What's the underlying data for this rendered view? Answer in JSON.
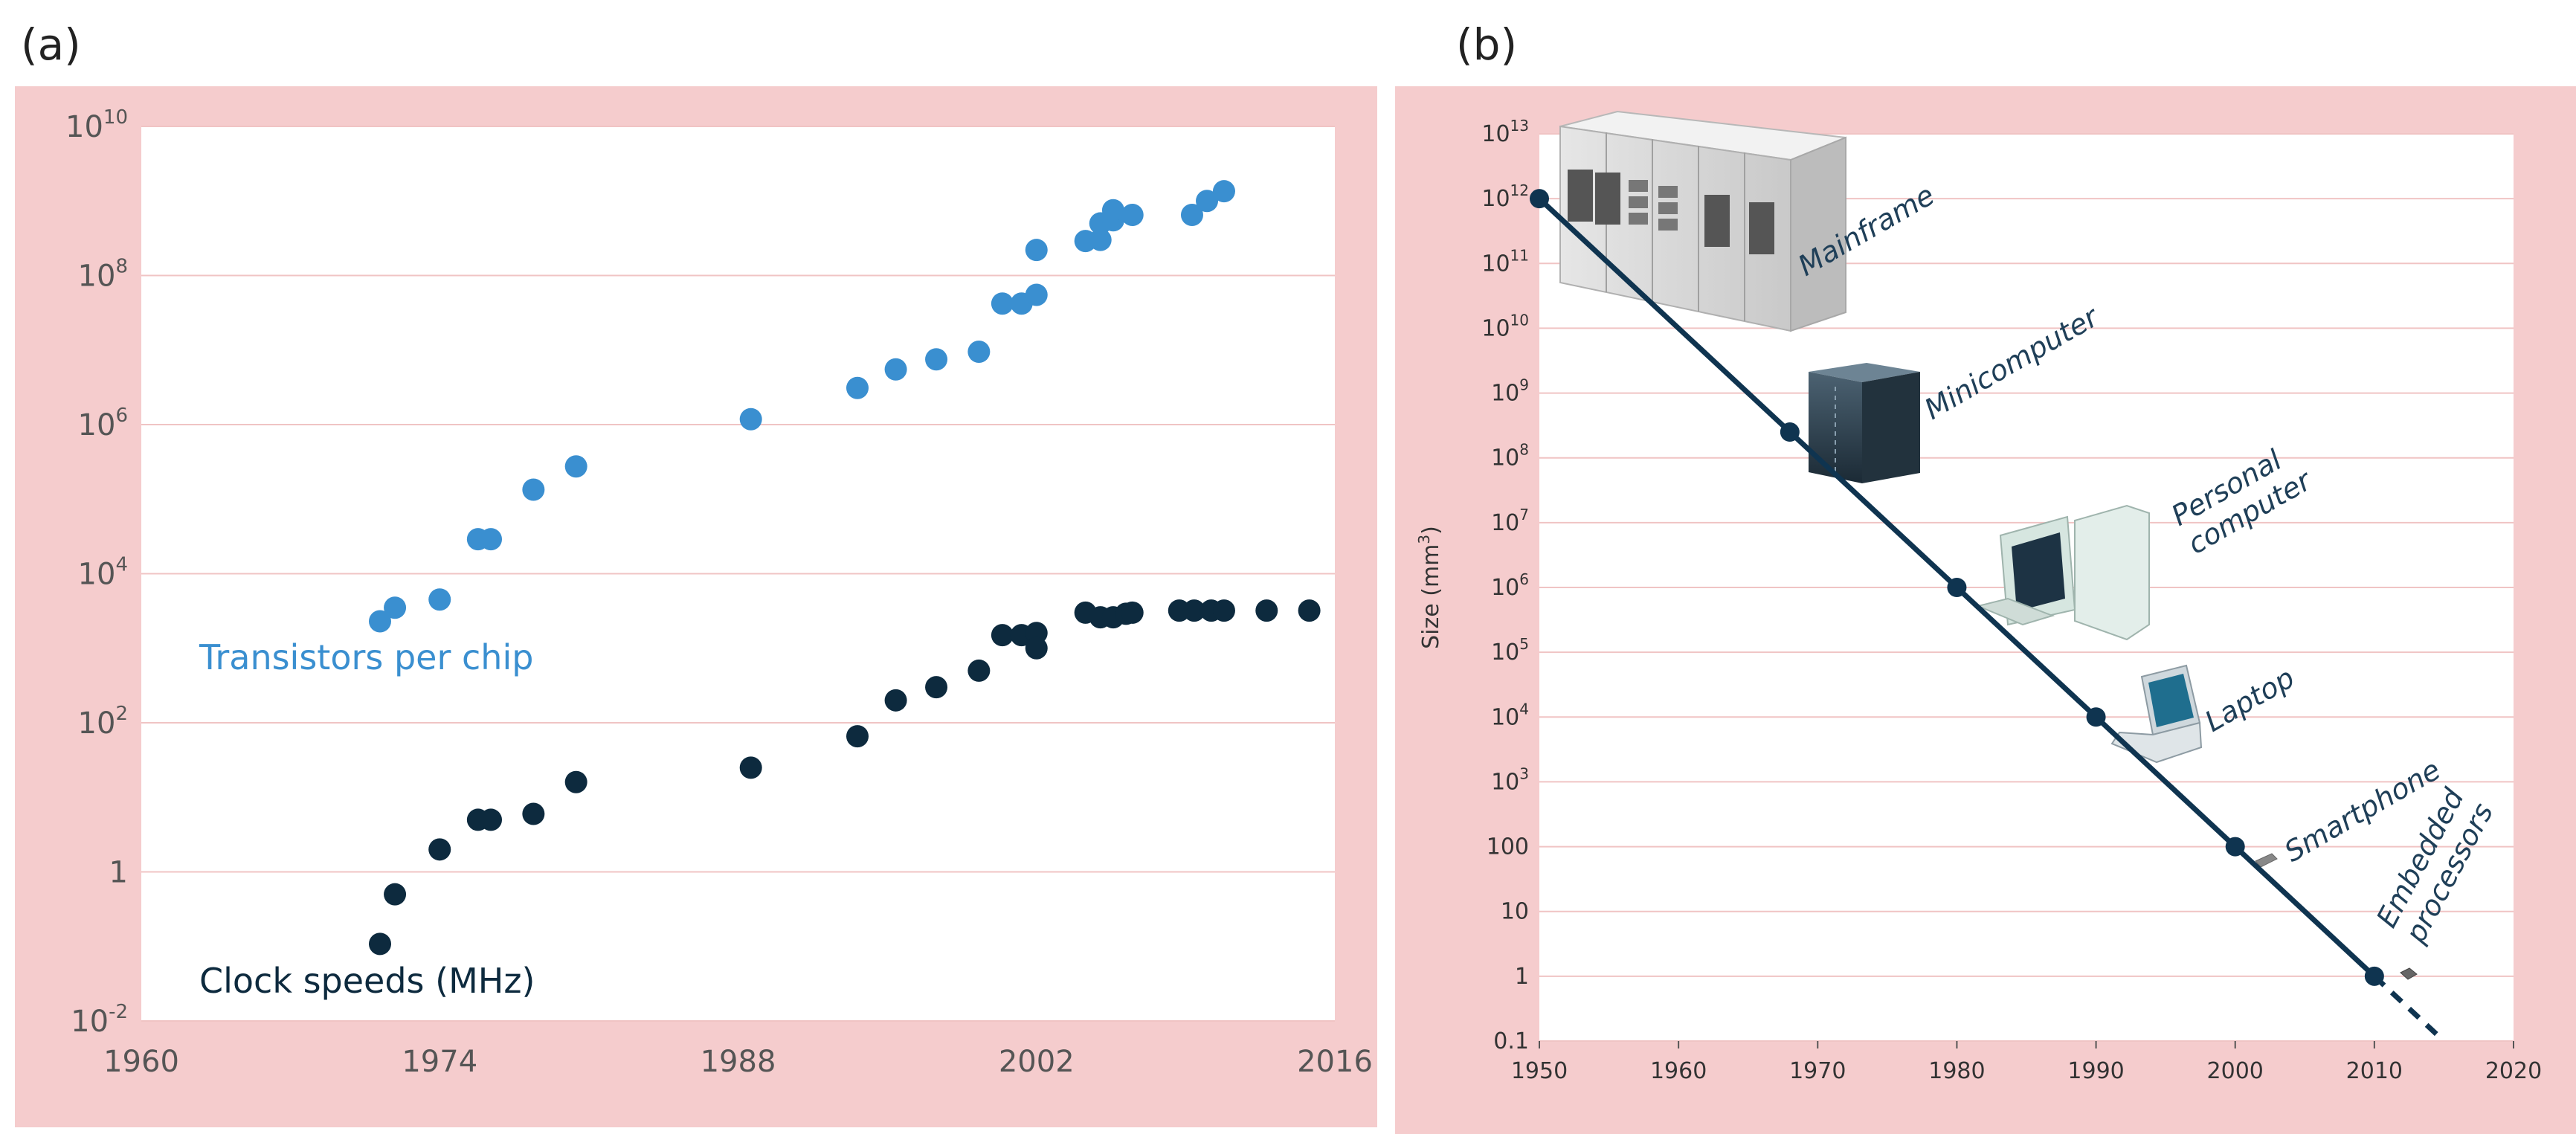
{
  "panel_a_label": "(a)",
  "panel_b_label": "(b)",
  "colors": {
    "background": "#f5cccd",
    "plot_bg": "#ffffff",
    "grid": "#f0c4c4",
    "transistors": "#3a8fd0",
    "clock": "#0d2a3e",
    "line_b": "#0f3450",
    "label_b": "#1f3f58"
  },
  "chart_data": [
    {
      "type": "scatter",
      "yscale": "log",
      "xlim": [
        1960,
        2016
      ],
      "ylim": [
        0.01,
        10000000000
      ],
      "x_ticks": [
        "1960",
        "1974",
        "1988",
        "2002",
        "2016"
      ],
      "y_ticks": [
        {
          "value": 10000000000,
          "base": "10",
          "exp": "10"
        },
        {
          "value": 100000000,
          "base": "10",
          "exp": "8"
        },
        {
          "value": 1000000,
          "base": "10",
          "exp": "6"
        },
        {
          "value": 10000,
          "base": "10",
          "exp": "4"
        },
        {
          "value": 100,
          "base": "10",
          "exp": "2"
        },
        {
          "value": 1,
          "base": "1",
          "exp": ""
        },
        {
          "value": 0.01,
          "base": "10",
          "exp": "-2"
        }
      ],
      "grid": true,
      "series": [
        {
          "name": "Transistors per chip",
          "points": [
            [
              1971.2,
              2300
            ],
            [
              1971.9,
              3500
            ],
            [
              1974.0,
              4500
            ],
            [
              1975.8,
              29000
            ],
            [
              1976.4,
              29000
            ],
            [
              1978.4,
              134000
            ],
            [
              1980.4,
              275000
            ],
            [
              1988.6,
              1180000
            ],
            [
              1993.6,
              3100000
            ],
            [
              1995.4,
              5500000
            ],
            [
              1997.3,
              7500000
            ],
            [
              1999.3,
              9500000
            ],
            [
              2000.4,
              42000000
            ],
            [
              2001.3,
              42000000
            ],
            [
              2002.0,
              55000000
            ],
            [
              2002.0,
              220000000
            ],
            [
              2004.3,
              290000000
            ],
            [
              2005.0,
              300000000
            ],
            [
              2005.0,
              500000000
            ],
            [
              2005.6,
              550000000
            ],
            [
              2005.6,
              750000000
            ],
            [
              2006.5,
              650000000
            ],
            [
              2009.3,
              650000000
            ],
            [
              2010.0,
              1000000000
            ],
            [
              2010.8,
              1350000000
            ]
          ]
        },
        {
          "name": "Clock speeds (MHz)",
          "points": [
            [
              1971.2,
              0.108
            ],
            [
              1971.9,
              0.5
            ],
            [
              1974.0,
              2.0
            ],
            [
              1975.8,
              5.0
            ],
            [
              1976.4,
              5.0
            ],
            [
              1978.4,
              6.0
            ],
            [
              1980.4,
              16.0
            ],
            [
              1988.6,
              25.0
            ],
            [
              1993.6,
              66.0
            ],
            [
              1995.4,
              200.0
            ],
            [
              1997.3,
              300.0
            ],
            [
              1999.3,
              500.0
            ],
            [
              2000.4,
              1500.0
            ],
            [
              2001.3,
              1500.0
            ],
            [
              2002.0,
              1600.0
            ],
            [
              2002.0,
              1000.0
            ],
            [
              2004.3,
              3000.0
            ],
            [
              2005.0,
              2600.0
            ],
            [
              2005.6,
              2600.0
            ],
            [
              2006.2,
              2900.0
            ],
            [
              2006.5,
              3000.0
            ],
            [
              2008.7,
              3200.0
            ],
            [
              2009.4,
              3200.0
            ],
            [
              2010.2,
              3200.0
            ],
            [
              2010.8,
              3200.0
            ],
            [
              2012.8,
              3200.0
            ],
            [
              2014.8,
              3200.0
            ]
          ]
        }
      ]
    },
    {
      "type": "line",
      "yscale": "log",
      "xlim": [
        1950,
        2020
      ],
      "ylim": [
        0.1,
        10000000000000
      ],
      "ylabel_base": "Size (mm",
      "ylabel_sup": "3",
      "ylabel_close": ")",
      "x_ticks": [
        "1950",
        "1960",
        "1970",
        "1980",
        "1990",
        "2000",
        "2010",
        "2020"
      ],
      "y_ticks": [
        {
          "value": 10000000000000,
          "base": "10",
          "exp": "13"
        },
        {
          "value": 1000000000000,
          "base": "10",
          "exp": "12"
        },
        {
          "value": 100000000000,
          "base": "10",
          "exp": "11"
        },
        {
          "value": 10000000000,
          "base": "10",
          "exp": "10"
        },
        {
          "value": 1000000000,
          "base": "10",
          "exp": "9"
        },
        {
          "value": 100000000,
          "base": "10",
          "exp": "8"
        },
        {
          "value": 10000000,
          "base": "10",
          "exp": "7"
        },
        {
          "value": 1000000,
          "base": "10",
          "exp": "6"
        },
        {
          "value": 100000,
          "base": "10",
          "exp": "5"
        },
        {
          "value": 10000,
          "base": "10",
          "exp": "4"
        },
        {
          "value": 1000,
          "base": "10",
          "exp": "3"
        },
        {
          "value": 100,
          "base": "100",
          "exp": ""
        },
        {
          "value": 10,
          "base": "10",
          "exp": ""
        },
        {
          "value": 1,
          "base": "1",
          "exp": ""
        },
        {
          "value": 0.1,
          "base": "0.1",
          "exp": ""
        }
      ],
      "grid": true,
      "trend_line": {
        "x": [
          1950,
          2010
        ],
        "y": [
          1000000000000,
          1
        ]
      },
      "trend_projection": {
        "x": [
          2010,
          2015
        ],
        "y": [
          1,
          0.1
        ]
      },
      "points": [
        {
          "label": "Mainframe",
          "x": 1950,
          "y": 1000000000000
        },
        {
          "label": "Minicomputer",
          "x": 1968,
          "y": 250000000
        },
        {
          "label": "Personal computer",
          "x": 1980,
          "y": 1000000
        },
        {
          "label": "Laptop",
          "x": 1990,
          "y": 10000
        },
        {
          "label": "Smartphone",
          "x": 2000,
          "y": 100
        },
        {
          "label": "Embedded processors",
          "x": 2010,
          "y": 1
        }
      ],
      "device_labels": [
        {
          "name": "mainframe",
          "lines": [
            "Mainframe"
          ]
        },
        {
          "name": "minicomputer",
          "lines": [
            "Minicomputer"
          ]
        },
        {
          "name": "personal-computer",
          "lines": [
            "Personal",
            "computer"
          ]
        },
        {
          "name": "laptop",
          "lines": [
            "Laptop"
          ]
        },
        {
          "name": "smartphone",
          "lines": [
            "Smartphone"
          ]
        },
        {
          "name": "embedded-processors",
          "lines": [
            "Embedded",
            "processors"
          ]
        }
      ]
    }
  ]
}
